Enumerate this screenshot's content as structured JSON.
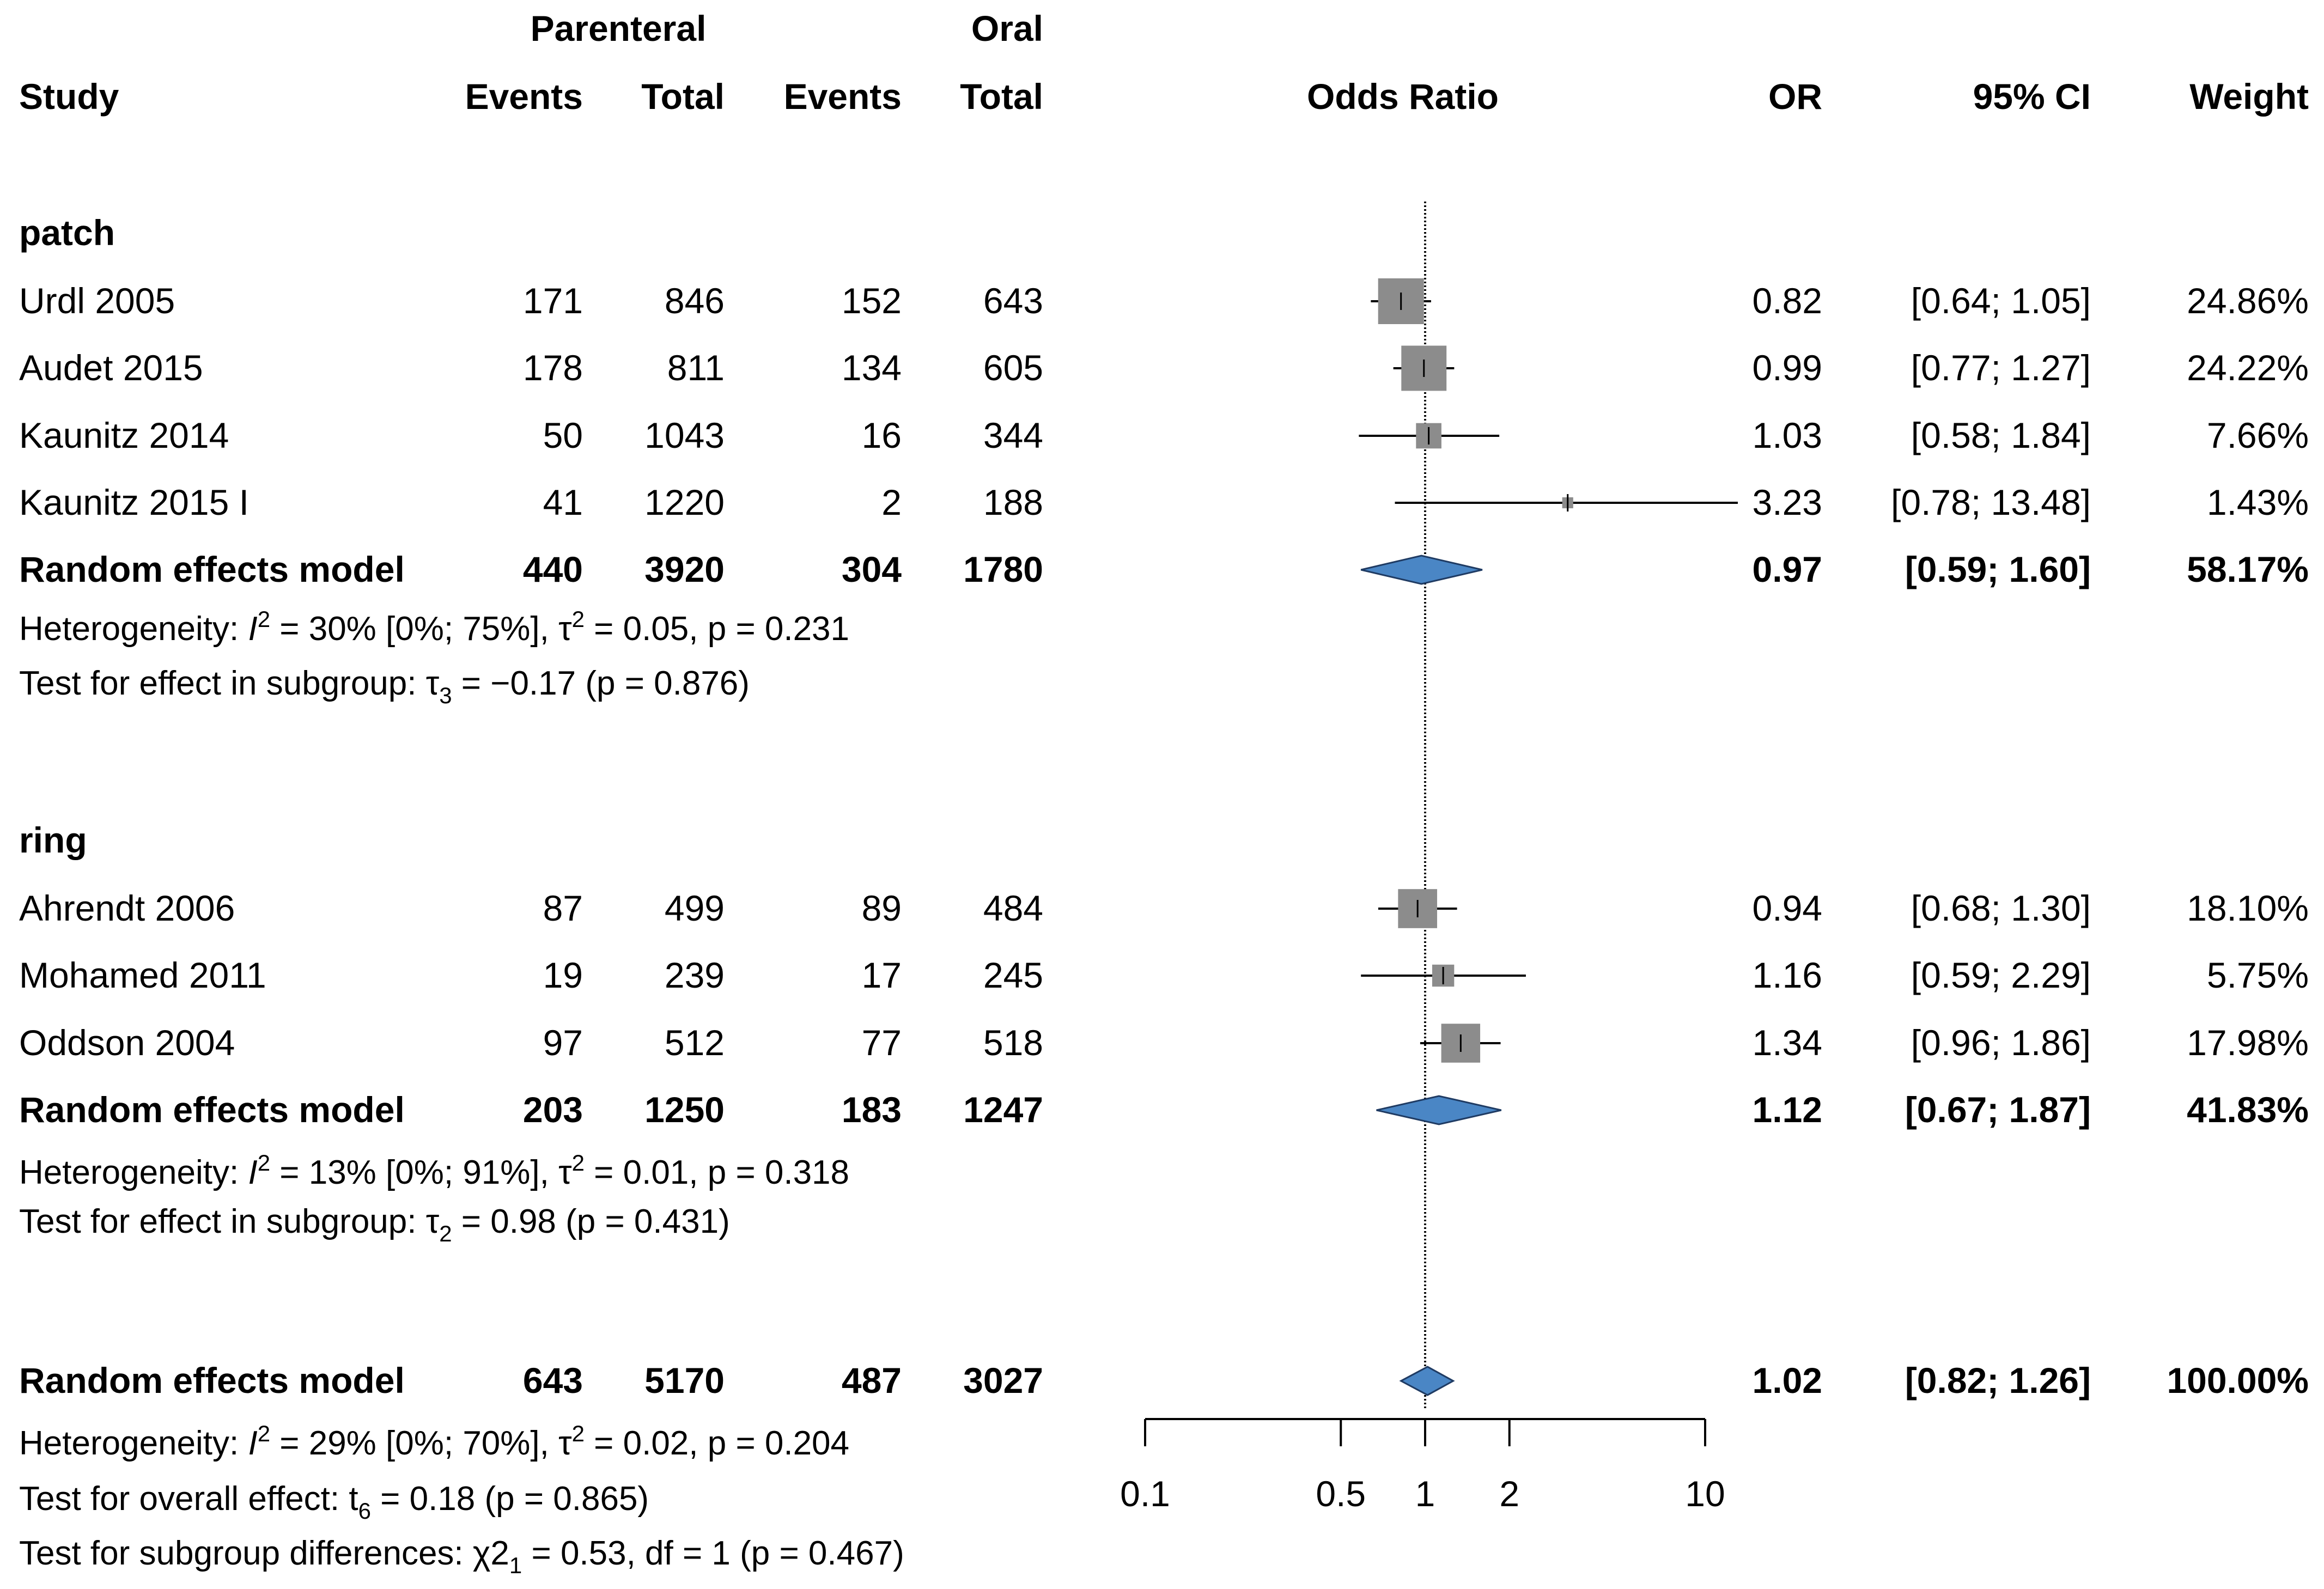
{
  "chart_data": {
    "type": "forest",
    "title": "",
    "xlabel": "Odds Ratio",
    "scale": "log",
    "xlim": [
      0.1,
      10
    ],
    "null_value": 1,
    "xticks": [
      0.1,
      0.5,
      1,
      2,
      10
    ],
    "xtick_labels": [
      "0.1",
      "0.5",
      "1",
      "2",
      "10"
    ],
    "group_headers": {
      "parenteral": "Parenteral",
      "oral": "Oral"
    },
    "column_headers": {
      "study": "Study",
      "p_events": "Events",
      "p_total": "Total",
      "o_events": "Events",
      "o_total": "Total",
      "plot": "Odds Ratio",
      "or": "OR",
      "ci": "95% CI",
      "weight": "Weight"
    },
    "subgroups": [
      {
        "name": "patch",
        "studies": [
          {
            "study": "Urdl 2005",
            "p_events": "171",
            "p_total": "846",
            "o_events": "152",
            "o_total": "643",
            "or": 0.82,
            "lower": 0.64,
            "upper": 1.05,
            "weight": 24.86,
            "or_text": "0.82",
            "ci_text": "[0.64; 1.05]",
            "weight_text": "24.86%"
          },
          {
            "study": "Audet 2015",
            "p_events": "178",
            "p_total": "811",
            "o_events": "134",
            "o_total": "605",
            "or": 0.99,
            "lower": 0.77,
            "upper": 1.27,
            "weight": 24.22,
            "or_text": "0.99",
            "ci_text": "[0.77; 1.27]",
            "weight_text": "24.22%"
          },
          {
            "study": "Kaunitz 2014",
            "p_events": "50",
            "p_total": "1043",
            "o_events": "16",
            "o_total": "344",
            "or": 1.03,
            "lower": 0.58,
            "upper": 1.84,
            "weight": 7.66,
            "or_text": "1.03",
            "ci_text": "[0.58; 1.84]",
            "weight_text": "7.66%"
          },
          {
            "study": "Kaunitz 2015 I",
            "p_events": "41",
            "p_total": "1220",
            "o_events": "2",
            "o_total": "188",
            "or": 3.23,
            "lower": 0.78,
            "upper": 13.48,
            "weight": 1.43,
            "or_text": "3.23",
            "ci_text": "[0.78; 13.48]",
            "weight_text": "1.43%"
          }
        ],
        "pooled": {
          "label": "Random effects model",
          "p_events": "440",
          "p_total": "3920",
          "o_events": "304",
          "o_total": "1780",
          "or": 0.97,
          "lower": 0.59,
          "upper": 1.6,
          "weight": 58.17,
          "or_text": "0.97",
          "ci_text": "[0.59; 1.60]",
          "weight_text": "58.17%"
        },
        "heterogeneity": {
          "prefix": "Heterogeneity: ",
          "i_sym": "I",
          "i_sup": "2",
          "i_rest": " = 30% [0%; 75%], τ",
          "t_sup": "2",
          "t_rest": " = 0.05, p = 0.231"
        },
        "effect_test": {
          "prefix": "Test for effect in subgroup: τ",
          "sub": "3",
          "rest": " = −0.17 (p = 0.876)"
        }
      },
      {
        "name": "ring",
        "studies": [
          {
            "study": "Ahrendt 2006",
            "p_events": "87",
            "p_total": "499",
            "o_events": "89",
            "o_total": "484",
            "or": 0.94,
            "lower": 0.68,
            "upper": 1.3,
            "weight": 18.1,
            "or_text": "0.94",
            "ci_text": "[0.68; 1.30]",
            "weight_text": "18.10%"
          },
          {
            "study": "Mohamed 2011",
            "p_events": "19",
            "p_total": "239",
            "o_events": "17",
            "o_total": "245",
            "or": 1.16,
            "lower": 0.59,
            "upper": 2.29,
            "weight": 5.75,
            "or_text": "1.16",
            "ci_text": "[0.59; 2.29]",
            "weight_text": "5.75%"
          },
          {
            "study": "Oddson 2004",
            "p_events": "97",
            "p_total": "512",
            "o_events": "77",
            "o_total": "518",
            "or": 1.34,
            "lower": 0.96,
            "upper": 1.86,
            "weight": 17.98,
            "or_text": "1.34",
            "ci_text": "[0.96; 1.86]",
            "weight_text": "17.98%"
          }
        ],
        "pooled": {
          "label": "Random effects model",
          "p_events": "203",
          "p_total": "1250",
          "o_events": "183",
          "o_total": "1247",
          "or": 1.12,
          "lower": 0.67,
          "upper": 1.87,
          "weight": 41.83,
          "or_text": "1.12",
          "ci_text": "[0.67; 1.87]",
          "weight_text": "41.83%"
        },
        "heterogeneity": {
          "prefix": "Heterogeneity: ",
          "i_sym": "I",
          "i_sup": "2",
          "i_rest": " = 13% [0%; 91%], τ",
          "t_sup": "2",
          "t_rest": " = 0.01, p = 0.318"
        },
        "effect_test": {
          "prefix": "Test for effect in subgroup: τ",
          "sub": "2",
          "rest": " = 0.98 (p = 0.431)"
        }
      }
    ],
    "overall": {
      "pooled": {
        "label": "Random effects model",
        "p_events": "643",
        "p_total": "5170",
        "o_events": "487",
        "o_total": "3027",
        "or": 1.02,
        "lower": 0.82,
        "upper": 1.26,
        "weight": 100.0,
        "or_text": "1.02",
        "ci_text": "[0.82; 1.26]",
        "weight_text": "100.00%"
      },
      "heterogeneity": {
        "prefix": "Heterogeneity: ",
        "i_sym": "I",
        "i_sup": "2",
        "i_rest": " = 29% [0%; 70%], τ",
        "t_sup": "2",
        "t_rest": " = 0.02, p = 0.204"
      },
      "overall_test": {
        "prefix": "Test for overall effect: t",
        "sub": "6",
        "rest": " = 0.18 (p = 0.865)"
      },
      "subgroup_test": {
        "prefix": "Test for subgroup differences: χ2",
        "sub": "1",
        "rest": " = 0.53, df = 1 (p = 0.467)"
      }
    },
    "colors": {
      "square": "#8c8c8c",
      "diamond": "#4a86c5",
      "diamond_stroke": "#1f3b63",
      "line": "#000000"
    }
  }
}
